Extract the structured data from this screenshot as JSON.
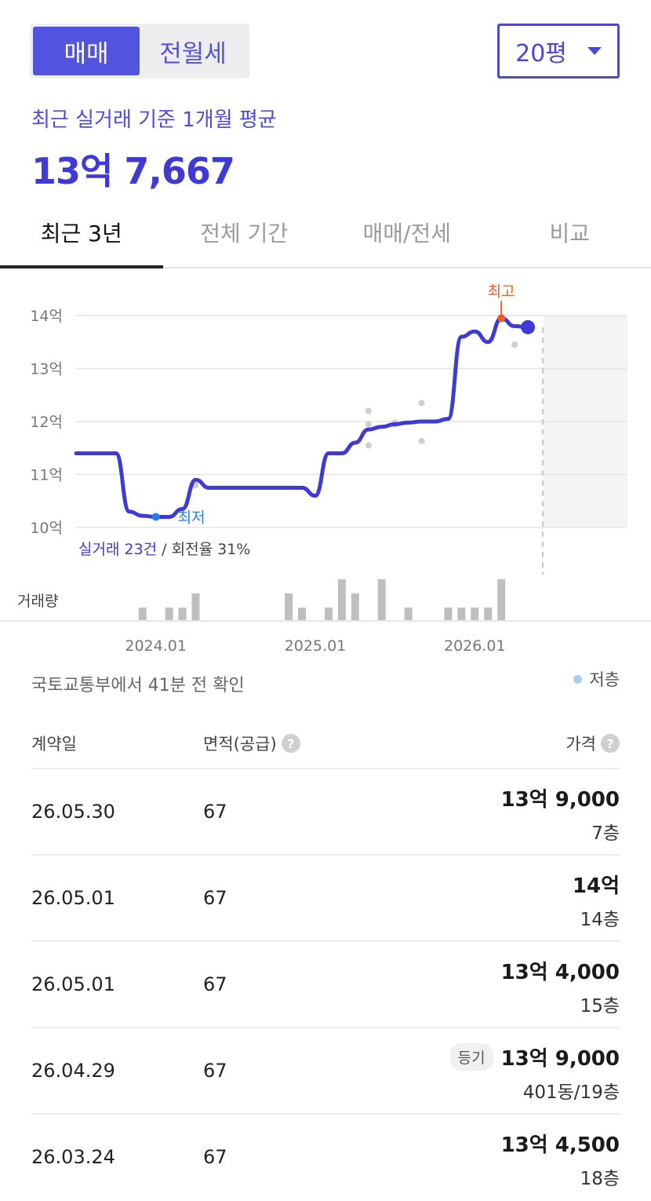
{
  "deal_toggle": {
    "options": [
      "매매",
      "전월세"
    ],
    "selected": "매매"
  },
  "size_selector": {
    "value": "20평"
  },
  "summary": {
    "label": "최근 실거래 기준 1개월 평균",
    "price": "13억 7,667"
  },
  "tabs": [
    {
      "label": "최근 3년",
      "active": true
    },
    {
      "label": "전체 기간",
      "active": false
    },
    {
      "label": "매매/전세",
      "active": false
    },
    {
      "label": "비교",
      "active": false
    }
  ],
  "chart_data": {
    "type": "line",
    "y_tick_labels": [
      "14억",
      "13억",
      "12억",
      "11억",
      "10억"
    ],
    "y_ticks": [
      14,
      13,
      12,
      11,
      10
    ],
    "ylim": [
      10,
      14
    ],
    "x_tick_labels": [
      "2024.01",
      "2025.01",
      "2026.01"
    ],
    "x_ticks": [
      "2024-01",
      "2025-01",
      "2026-01"
    ],
    "x_range": [
      "2023-07",
      "2026-06"
    ],
    "series": [
      {
        "values_unit": "억",
        "x": [
          "2023-07",
          "2023-08",
          "2023-09",
          "2023-10",
          "2023-11",
          "2023-12",
          "2024-01",
          "2024-02",
          "2024-03",
          "2024-04",
          "2024-05",
          "2024-06",
          "2024-07",
          "2024-08",
          "2024-09",
          "2024-10",
          "2024-11",
          "2024-12",
          "2025-01",
          "2025-02",
          "2025-03",
          "2025-04",
          "2025-05",
          "2025-06",
          "2025-07",
          "2025-08",
          "2025-09",
          "2025-10",
          "2025-11",
          "2025-12",
          "2026-01",
          "2026-02",
          "2026-03",
          "2026-04",
          "2026-05"
        ],
        "y": [
          11.4,
          11.4,
          11.4,
          11.4,
          10.3,
          10.22,
          10.2,
          10.2,
          10.35,
          10.9,
          10.75,
          10.75,
          10.75,
          10.75,
          10.75,
          10.75,
          10.75,
          10.75,
          10.6,
          11.4,
          11.4,
          11.6,
          11.85,
          11.9,
          11.95,
          11.98,
          12.0,
          12.0,
          12.05,
          13.6,
          13.7,
          13.5,
          13.95,
          13.8,
          13.78
        ]
      }
    ],
    "scatter_points": {
      "x": [
        "2024-04",
        "2025-05",
        "2025-05",
        "2025-05",
        "2025-07",
        "2025-07",
        "2025-09",
        "2025-09",
        "2026-04"
      ],
      "y": [
        10.8,
        12.2,
        11.95,
        11.55,
        11.98,
        11.95,
        12.35,
        11.63,
        13.45
      ]
    },
    "annotations": {
      "high_label": "최고",
      "low_label": "최저"
    },
    "stats_text": {
      "count": "실거래 23건",
      "rest": " / 회전율 31%"
    },
    "volume_label": "거래량",
    "volume": {
      "x": [
        "2023-12",
        "2024-02",
        "2024-03",
        "2024-04",
        "2024-11",
        "2024-12",
        "2025-02",
        "2025-03",
        "2025-04",
        "2025-06",
        "2025-08",
        "2025-11",
        "2025-12",
        "2026-01",
        "2026-02",
        "2026-03"
      ],
      "counts": [
        1,
        1,
        1,
        2,
        2,
        1,
        1,
        3,
        2,
        3,
        1,
        1,
        1,
        1,
        1,
        3
      ]
    },
    "colors": {
      "line": "#3f3ad6",
      "high": "#f05a24",
      "low": "#2b7de0",
      "scatter": "#cfcfd3",
      "volume": "#bfbfc2",
      "grid": "#e4e4e6",
      "future_shade": "#f4f4f5"
    }
  },
  "source_note": "국토교통부에서 41분 전 확인",
  "legend": {
    "low_floor": "저층"
  },
  "table": {
    "headers": {
      "date": "계약일",
      "area": "면적(공급)",
      "price": "가격"
    },
    "rows": [
      {
        "date": "26.05.30",
        "area": "67",
        "price": "13억 9,000",
        "floor": "7층",
        "badge": ""
      },
      {
        "date": "26.05.01",
        "area": "67",
        "price": "14억",
        "floor": "14층",
        "badge": ""
      },
      {
        "date": "26.05.01",
        "area": "67",
        "price": "13억 4,000",
        "floor": "15층",
        "badge": ""
      },
      {
        "date": "26.04.29",
        "area": "67",
        "price": "13억 9,000",
        "floor": "401동/19층",
        "badge": "등기"
      },
      {
        "date": "26.03.24",
        "area": "67",
        "price": "13억 4,500",
        "floor": "18층",
        "badge": ""
      }
    ]
  }
}
